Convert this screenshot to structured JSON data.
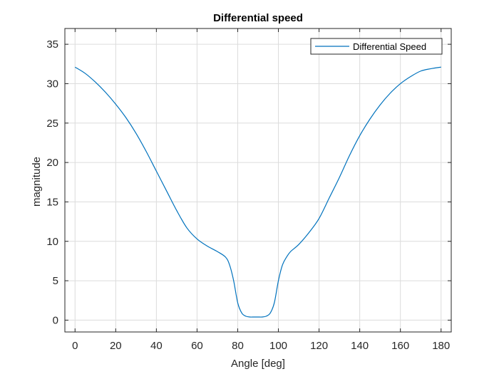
{
  "chart_data": {
    "type": "line",
    "title": "Differential speed",
    "xlabel": "Angle [deg]",
    "ylabel": "magnitude",
    "xlim": [
      -5,
      185
    ],
    "ylim": [
      -1.5,
      37
    ],
    "xticks": [
      0,
      20,
      40,
      60,
      80,
      100,
      120,
      140,
      160,
      180
    ],
    "yticks": [
      0,
      5,
      10,
      15,
      20,
      25,
      30,
      35
    ],
    "grid": true,
    "legend_position": "top-right",
    "series": [
      {
        "name": "Differential Speed",
        "color": "#0072BD",
        "x": [
          0,
          5,
          10,
          15,
          20,
          25,
          30,
          35,
          40,
          45,
          50,
          55,
          60,
          65,
          70,
          74,
          76,
          78,
          80,
          82,
          84,
          86,
          88,
          90,
          92,
          94,
          96,
          98,
          100,
          102,
          104,
          106,
          110,
          115,
          120,
          125,
          130,
          135,
          140,
          145,
          150,
          155,
          160,
          165,
          170,
          175,
          180
        ],
        "y": [
          32.1,
          31.3,
          30.2,
          28.9,
          27.4,
          25.7,
          23.7,
          21.4,
          18.9,
          16.4,
          13.9,
          11.7,
          10.3,
          9.4,
          8.7,
          8.0,
          7.0,
          5.0,
          2.2,
          0.9,
          0.5,
          0.4,
          0.4,
          0.4,
          0.4,
          0.5,
          0.9,
          2.2,
          5.0,
          7.0,
          8.0,
          8.7,
          9.6,
          11.1,
          12.9,
          15.5,
          18.1,
          20.9,
          23.4,
          25.5,
          27.3,
          28.8,
          30.0,
          30.9,
          31.6,
          31.9,
          32.1
        ]
      }
    ]
  }
}
